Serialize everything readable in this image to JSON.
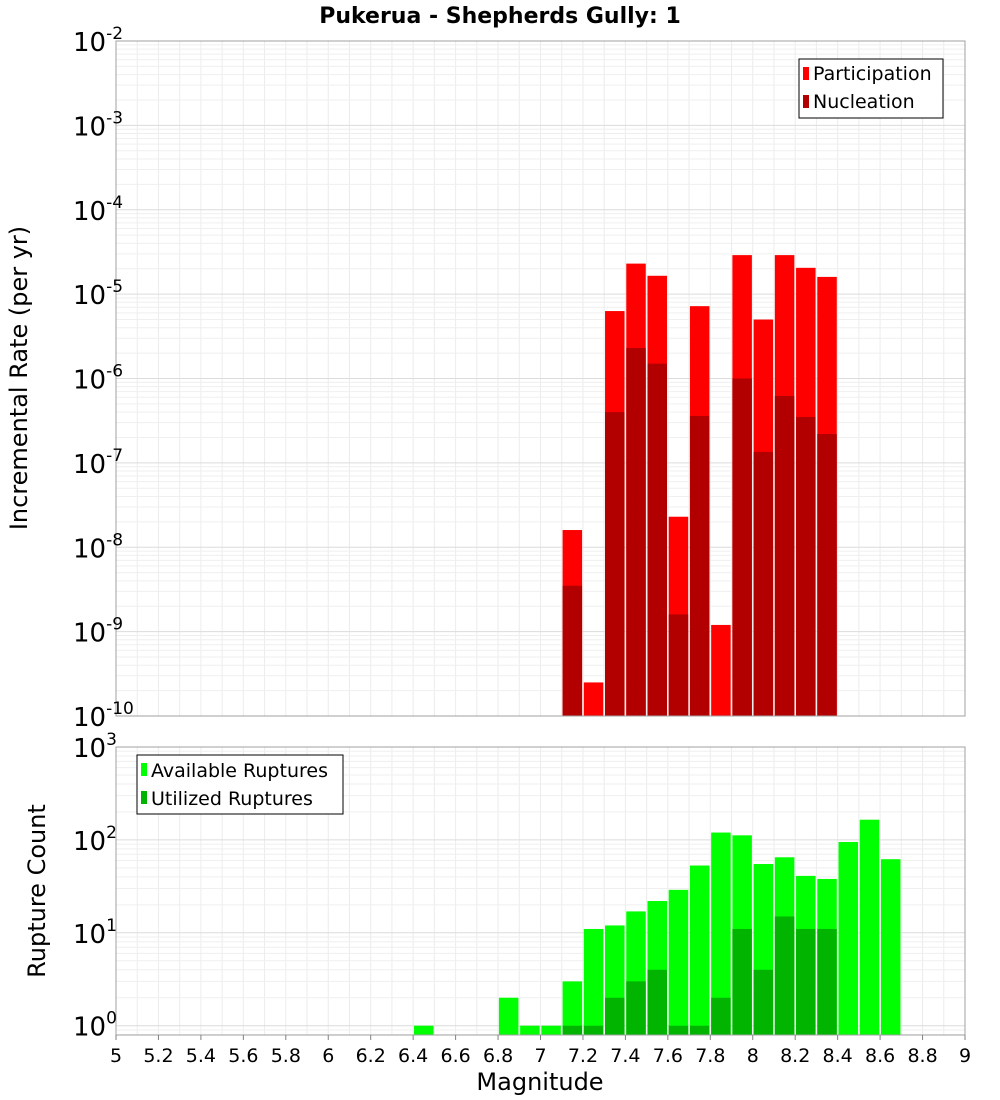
{
  "chart_data": [
    {
      "type": "bar",
      "title": "Pukerua - Shepherds Gully: 1",
      "ylabel": "Incremental Rate (per yr)",
      "yscale": "log",
      "ylim_exponents": [
        -10,
        -2
      ],
      "ytick_base": "10",
      "ytick_exponents": [
        "-10",
        "-9",
        "-8",
        "-7",
        "-6",
        "-5",
        "-4",
        "-3",
        "-2"
      ],
      "legend_position": "top-right",
      "grid": true,
      "colors": {
        "Participation": "#ff0000",
        "Nucleation": "#b20000"
      },
      "series": [
        {
          "name": "Participation",
          "x": [
            7.15,
            7.25,
            7.35,
            7.45,
            7.55,
            7.65,
            7.75,
            7.85,
            7.95,
            8.05,
            8.15,
            8.25,
            8.35
          ],
          "values": [
            1.6e-08,
            2.5e-10,
            6.3e-06,
            2.3e-05,
            1.65e-05,
            2.3e-08,
            7.2e-06,
            1.2e-09,
            2.9e-05,
            5e-06,
            2.9e-05,
            2.05e-05,
            1.6e-05
          ]
        },
        {
          "name": "Nucleation",
          "x": [
            7.15,
            7.25,
            7.35,
            7.45,
            7.55,
            7.65,
            7.75,
            7.85,
            7.95,
            8.05,
            8.15,
            8.25,
            8.35
          ],
          "values": [
            3.5e-09,
            null,
            4e-07,
            2.3e-06,
            1.5e-06,
            1.6e-09,
            3.6e-07,
            null,
            1e-06,
            1.35e-07,
            6.2e-07,
            3.5e-07,
            2.2e-07
          ]
        }
      ]
    },
    {
      "type": "bar",
      "xlabel": "Magnitude",
      "ylabel": "Rupture Count",
      "yscale": "log",
      "ylim_exponents": [
        -0.1,
        3
      ],
      "ytick_base": "10",
      "ytick_exponents": [
        "0",
        "1",
        "2",
        "3"
      ],
      "xlim": [
        5,
        9
      ],
      "xticks": [
        "5",
        "5.2",
        "5.4",
        "5.6",
        "5.8",
        "6",
        "6.2",
        "6.4",
        "6.6",
        "6.8",
        "7",
        "7.2",
        "7.4",
        "7.6",
        "7.8",
        "8",
        "8.2",
        "8.4",
        "8.6",
        "8.8",
        "9"
      ],
      "legend_position": "top-left",
      "grid": true,
      "colors": {
        "Available Ruptures": "#00ff00",
        "Utilized Ruptures": "#00b400"
      },
      "series": [
        {
          "name": "Available Ruptures",
          "x": [
            6.45,
            6.85,
            6.95,
            7.05,
            7.15,
            7.25,
            7.35,
            7.45,
            7.55,
            7.65,
            7.75,
            7.85,
            7.95,
            8.05,
            8.15,
            8.25,
            8.35,
            8.45,
            8.55,
            8.65
          ],
          "values": [
            1,
            2,
            1,
            1,
            3,
            11,
            12,
            17,
            22,
            29,
            53,
            120,
            112,
            55,
            65,
            41,
            38,
            95,
            165,
            62
          ]
        },
        {
          "name": "Utilized Ruptures",
          "x": [
            7.15,
            7.25,
            7.35,
            7.45,
            7.55,
            7.65,
            7.75,
            7.85,
            7.95,
            8.05,
            8.15,
            8.25,
            8.35
          ],
          "values": [
            1,
            1,
            2,
            3,
            4,
            1,
            1,
            2,
            11,
            4,
            15,
            11,
            11
          ]
        }
      ]
    }
  ]
}
